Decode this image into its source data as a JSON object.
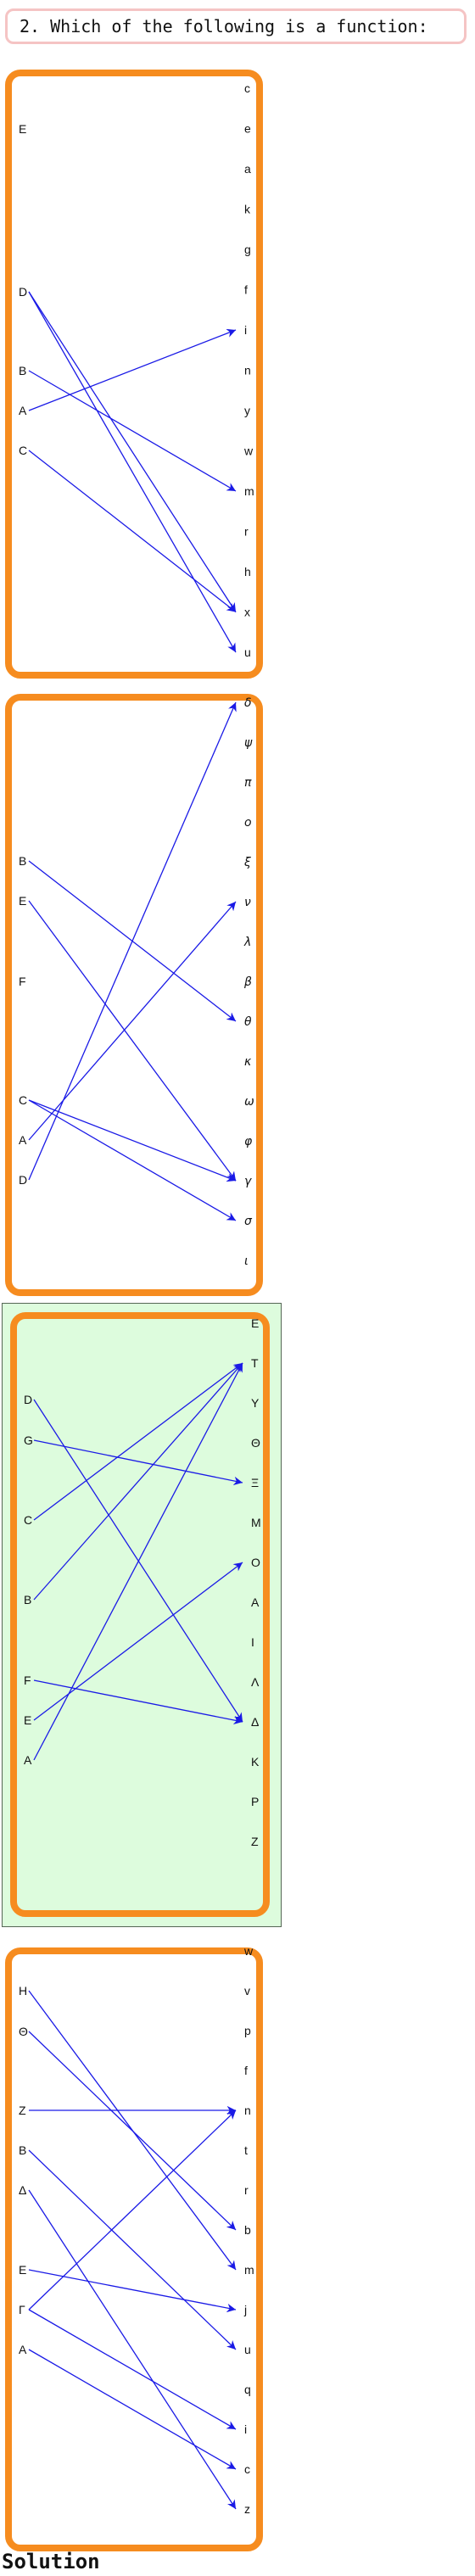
{
  "question": "2. Which of the following is a function:",
  "solution_label": "Solution",
  "colors": {
    "box_border": "#f68c1f",
    "arrow": "#1a1ae6",
    "highlight": "#ddfcdd",
    "question_border": "#f5c4c4"
  },
  "panels": [
    {
      "highlighted": false,
      "domain": [
        "E",
        "D",
        "B",
        "A",
        "C"
      ],
      "codomain": [
        "c",
        "e",
        "a",
        "k",
        "g",
        "f",
        "i",
        "n",
        "y",
        "w",
        "m",
        "r",
        "h",
        "x",
        "u"
      ],
      "arrows": [
        [
          "D",
          "x"
        ],
        [
          "D",
          "u"
        ],
        [
          "B",
          "m"
        ],
        [
          "A",
          "i"
        ],
        [
          "C",
          "x"
        ]
      ]
    },
    {
      "highlighted": false,
      "domain": [
        "B",
        "E",
        "F",
        "C",
        "A",
        "D"
      ],
      "codomain": [
        "δ",
        "ψ",
        "π",
        "ο",
        "ξ",
        "ν",
        "λ",
        "β",
        "θ",
        "κ",
        "ω",
        "φ",
        "γ",
        "σ",
        "ι"
      ],
      "arrows": [
        [
          "B",
          "θ"
        ],
        [
          "E",
          "γ"
        ],
        [
          "C",
          "γ"
        ],
        [
          "C",
          "σ"
        ],
        [
          "A",
          "ν"
        ],
        [
          "D",
          "δ"
        ]
      ]
    },
    {
      "highlighted": true,
      "domain": [
        "D",
        "G",
        "C",
        "B",
        "F",
        "E",
        "A"
      ],
      "codomain": [
        "E",
        "T",
        "Y",
        "Θ",
        "Ξ",
        "M",
        "O",
        "A",
        "I",
        "Λ",
        "Δ",
        "K",
        "P",
        "Z"
      ],
      "arrows": [
        [
          "D",
          "Δ"
        ],
        [
          "G",
          "Ξ"
        ],
        [
          "C",
          "T"
        ],
        [
          "B",
          "T"
        ],
        [
          "F",
          "Δ"
        ],
        [
          "E",
          "O"
        ],
        [
          "A",
          "T"
        ]
      ]
    },
    {
      "highlighted": false,
      "domain": [
        "H",
        "Θ",
        "Z",
        "B",
        "Δ",
        "E",
        "Γ",
        "A"
      ],
      "codomain": [
        "w",
        "v",
        "p",
        "f",
        "n",
        "t",
        "r",
        "b",
        "m",
        "j",
        "u",
        "q",
        "i",
        "c",
        "z"
      ],
      "arrows": [
        [
          "H",
          "m"
        ],
        [
          "Θ",
          "b"
        ],
        [
          "Z",
          "n"
        ],
        [
          "B",
          "u"
        ],
        [
          "Δ",
          "z"
        ],
        [
          "E",
          "j"
        ],
        [
          "Γ",
          "n"
        ],
        [
          "Γ",
          "i"
        ],
        [
          "A",
          "c"
        ]
      ]
    }
  ]
}
